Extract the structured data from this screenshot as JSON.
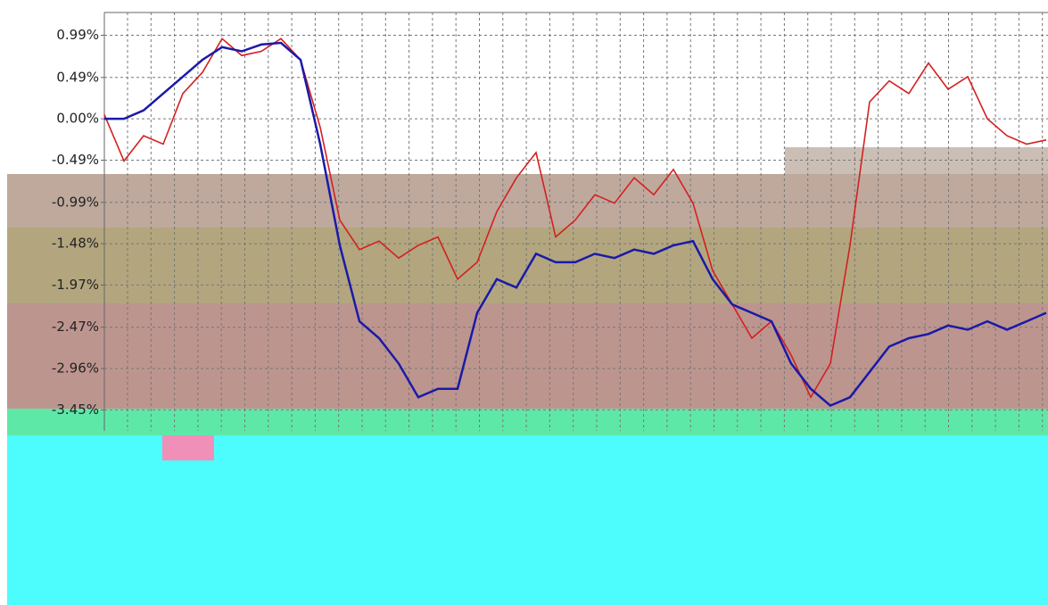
{
  "chart_data": {
    "type": "line",
    "ylim": [
      -3.7,
      1.26
    ],
    "yticks": [
      {
        "value": 0.99,
        "label": "0.99%"
      },
      {
        "value": 0.49,
        "label": "0.49%"
      },
      {
        "value": 0.0,
        "label": "0.00%"
      },
      {
        "value": -0.49,
        "label": "-0.49%"
      },
      {
        "value": -0.99,
        "label": "-0.99%"
      },
      {
        "value": -1.48,
        "label": "-1.48%"
      },
      {
        "value": -1.97,
        "label": "-1.97%"
      },
      {
        "value": -2.47,
        "label": "-2.47%"
      },
      {
        "value": -2.96,
        "label": "-2.96%"
      },
      {
        "value": -3.45,
        "label": "-3.45%"
      }
    ],
    "grid": true,
    "series": [
      {
        "color": "#d42020",
        "values": [
          0.05,
          -0.5,
          -0.2,
          -0.3,
          0.3,
          0.55,
          0.95,
          0.75,
          0.8,
          0.95,
          0.7,
          -0.1,
          -1.2,
          -1.55,
          -1.45,
          -1.65,
          -1.5,
          -1.4,
          -1.9,
          -1.7,
          -1.1,
          -0.7,
          -0.4,
          -1.4,
          -1.2,
          -0.9,
          -1.0,
          -0.7,
          -0.9,
          -0.6,
          -1.0,
          -1.8,
          -2.2,
          -2.6,
          -2.4,
          -2.8,
          -3.3,
          -2.9,
          -1.5,
          0.2,
          0.45,
          0.3,
          0.66,
          0.35,
          0.5,
          0.0,
          -0.2,
          -0.3,
          -0.25
        ]
      },
      {
        "color": "#1a1aa8",
        "values": [
          0.0,
          0.0,
          0.1,
          0.3,
          0.5,
          0.7,
          0.85,
          0.8,
          0.88,
          0.9,
          0.7,
          -0.3,
          -1.5,
          -2.4,
          -2.6,
          -2.9,
          -3.3,
          -3.2,
          -3.2,
          -2.3,
          -1.9,
          -2.0,
          -1.6,
          -1.7,
          -1.7,
          -1.6,
          -1.65,
          -1.55,
          -1.6,
          -1.5,
          -1.45,
          -1.9,
          -2.2,
          -2.3,
          -2.4,
          -2.9,
          -3.2,
          -3.4,
          -3.3,
          -3.0,
          -2.7,
          -2.6,
          -2.55,
          -2.45,
          -2.5,
          -2.4,
          -2.5,
          -2.4,
          -2.3
        ]
      }
    ]
  }
}
